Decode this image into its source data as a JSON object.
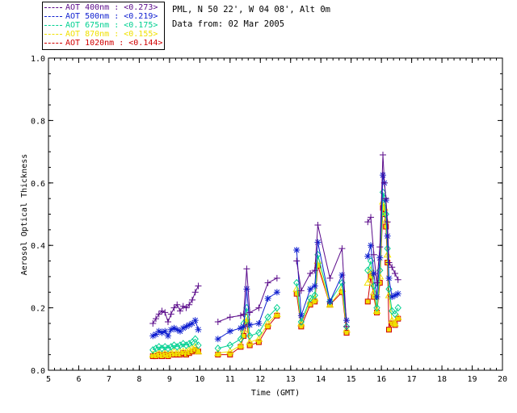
{
  "info": {
    "location": "PML, N 50 22', W 04 08', Alt 0m",
    "date": "Data from: 02 Mar 2005"
  },
  "legend": [
    {
      "label": "AOT  400nm : <0.273>",
      "color": "#5a0a8a"
    },
    {
      "label": "AOT  500nm : <0.219>",
      "color": "#1020d0"
    },
    {
      "label": "AOT  675nm : <0.175>",
      "color": "#00d090"
    },
    {
      "label": "AOT  870nm : <0.155>",
      "color": "#f0e000"
    },
    {
      "label": "AOT 1020nm : <0.144>",
      "color": "#d00000"
    }
  ],
  "chart_data": {
    "type": "line",
    "title": "",
    "xlabel": "Time (GMT)",
    "ylabel": "Aerosol Optical Thickness",
    "xlim": [
      5,
      20
    ],
    "ylim": [
      0,
      1.0
    ],
    "xticks": [
      "5",
      "6",
      "7",
      "8",
      "9",
      "10",
      "11",
      "12",
      "13",
      "14",
      "15",
      "16",
      "17",
      "18",
      "19",
      "20"
    ],
    "yticks": [
      "0.0",
      "0.2",
      "0.4",
      "0.6",
      "0.8",
      "1.0"
    ],
    "x": [
      8.45,
      8.55,
      8.65,
      8.75,
      8.85,
      8.95,
      9.05,
      9.15,
      9.25,
      9.35,
      9.45,
      9.55,
      9.65,
      9.75,
      9.85,
      9.95,
      10.6,
      11.0,
      11.35,
      11.45,
      11.55,
      11.65,
      11.95,
      12.25,
      12.55,
      13.2,
      13.35,
      13.65,
      13.8,
      13.9,
      14.3,
      14.7,
      14.85,
      15.55,
      15.65,
      15.75,
      15.85,
      15.95,
      16.05,
      16.1,
      16.15,
      16.2,
      16.25,
      16.35,
      16.45,
      16.55
    ],
    "series": [
      {
        "name": "AOT 400nm",
        "marker": "plus",
        "color": "#5a0a8a",
        "values": [
          0.15,
          0.165,
          0.18,
          0.19,
          0.185,
          0.155,
          0.18,
          0.2,
          0.21,
          0.19,
          0.205,
          0.2,
          0.21,
          0.225,
          0.25,
          0.27,
          0.155,
          0.17,
          0.175,
          0.18,
          0.325,
          0.185,
          0.2,
          0.28,
          0.295,
          0.35,
          0.255,
          0.31,
          0.32,
          0.465,
          0.295,
          0.39,
          0.14,
          0.475,
          0.49,
          0.37,
          0.28,
          0.395,
          0.69,
          0.6,
          0.55,
          0.475,
          0.345,
          0.33,
          0.31,
          0.29
        ]
      },
      {
        "name": "AOT 500nm",
        "marker": "star",
        "color": "#1020d0",
        "values": [
          0.11,
          0.115,
          0.125,
          0.12,
          0.125,
          0.11,
          0.13,
          0.135,
          0.13,
          0.125,
          0.135,
          0.14,
          0.145,
          0.15,
          0.16,
          0.13,
          0.1,
          0.125,
          0.135,
          0.14,
          0.26,
          0.145,
          0.15,
          0.23,
          0.25,
          0.385,
          0.175,
          0.26,
          0.27,
          0.41,
          0.22,
          0.305,
          0.16,
          0.365,
          0.4,
          0.31,
          0.235,
          0.36,
          0.625,
          0.6,
          0.545,
          0.43,
          0.295,
          0.235,
          0.24,
          0.245
        ]
      },
      {
        "name": "AOT 675nm",
        "marker": "diamond",
        "color": "#00d090",
        "values": [
          0.065,
          0.07,
          0.075,
          0.07,
          0.075,
          0.07,
          0.075,
          0.08,
          0.075,
          0.08,
          0.085,
          0.08,
          0.085,
          0.09,
          0.1,
          0.08,
          0.07,
          0.08,
          0.1,
          0.15,
          0.2,
          0.11,
          0.12,
          0.17,
          0.2,
          0.28,
          0.155,
          0.23,
          0.24,
          0.37,
          0.22,
          0.28,
          0.14,
          0.32,
          0.35,
          0.27,
          0.2,
          0.32,
          0.57,
          0.55,
          0.5,
          0.39,
          0.26,
          0.19,
          0.18,
          0.2
        ]
      },
      {
        "name": "AOT 870nm",
        "marker": "triangle",
        "color": "#f0e000",
        "values": [
          0.05,
          0.05,
          0.055,
          0.05,
          0.055,
          0.05,
          0.055,
          0.06,
          0.055,
          0.06,
          0.06,
          0.06,
          0.065,
          0.07,
          0.075,
          0.06,
          0.055,
          0.06,
          0.08,
          0.13,
          0.17,
          0.09,
          0.1,
          0.15,
          0.18,
          0.26,
          0.15,
          0.22,
          0.23,
          0.35,
          0.21,
          0.26,
          0.13,
          0.28,
          0.32,
          0.25,
          0.19,
          0.3,
          0.54,
          0.52,
          0.48,
          0.37,
          0.24,
          0.16,
          0.15,
          0.17
        ]
      },
      {
        "name": "AOT 1020nm",
        "marker": "square",
        "color": "#d00000",
        "values": [
          0.045,
          0.045,
          0.05,
          0.045,
          0.05,
          0.045,
          0.05,
          0.05,
          0.05,
          0.05,
          0.055,
          0.05,
          0.055,
          0.06,
          0.065,
          0.06,
          0.05,
          0.05,
          0.075,
          0.11,
          0.155,
          0.08,
          0.09,
          0.14,
          0.175,
          0.245,
          0.14,
          0.21,
          0.22,
          0.335,
          0.21,
          0.25,
          0.12,
          0.22,
          0.3,
          0.235,
          0.185,
          0.28,
          0.52,
          0.5,
          0.46,
          0.345,
          0.13,
          0.15,
          0.145,
          0.165
        ]
      }
    ]
  }
}
